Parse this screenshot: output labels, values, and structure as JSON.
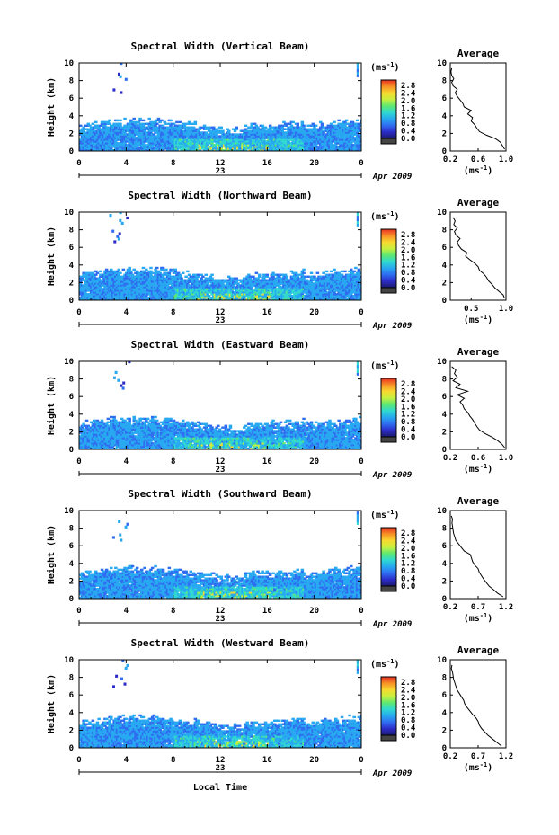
{
  "figure": {
    "common_x_label": "Local Time",
    "date_label": "Apr 2009",
    "day_label": "23",
    "colorbar_unit_text": "(ms",
    "colorbar_unit_sup": "-1",
    "colorbar_unit_close": ")",
    "avg_title": "Average",
    "avg_xlabel_text": "(ms",
    "avg_xlabel_sup": "-1",
    "avg_xlabel_close": ")"
  },
  "colorbar": {
    "ticks": [
      "0.0",
      "0.4",
      "0.8",
      "1.2",
      "1.6",
      "2.0",
      "2.4",
      "2.8"
    ],
    "values": [
      0.0,
      0.4,
      0.8,
      1.2,
      1.6,
      2.0,
      2.4,
      2.8
    ],
    "colors": [
      "#1a1a6e",
      "#2c2cc8",
      "#2f6ef0",
      "#28a8f0",
      "#30d8d0",
      "#5fe870",
      "#c8f040",
      "#f8d830",
      "#f89028",
      "#e83020"
    ]
  },
  "chart_data": [
    {
      "type": "heatmap",
      "title": "Spectral Width (Vertical Beam)",
      "xlabel": "Local Time",
      "ylabel": "Height (km)",
      "x_ticks": [
        "0",
        "4",
        "8",
        "12",
        "16",
        "20",
        "0"
      ],
      "y_ticks": [
        "0",
        "2",
        "4",
        "6",
        "8",
        "10"
      ],
      "xlim": [
        0,
        24
      ],
      "ylim": [
        0,
        10
      ],
      "colorbar_range": [
        0.0,
        2.8
      ],
      "average": {
        "xlim": [
          0.2,
          1.0
        ],
        "x_ticks": [
          "0.2",
          "0.6",
          "1.0"
        ],
        "y_ticks": [
          "0",
          "2",
          "4",
          "6",
          "8",
          "10"
        ],
        "height_km": [
          0.2,
          0.6,
          1.0,
          1.4,
          1.8,
          2.2,
          2.6,
          3.0,
          3.4,
          3.8,
          4.2,
          4.6,
          5.0,
          5.4,
          5.8,
          6.2,
          6.6,
          7.0,
          7.4,
          7.8,
          8.2,
          8.6,
          9.0,
          9.4
        ],
        "mean_width": [
          0.98,
          0.95,
          0.92,
          0.85,
          0.72,
          0.62,
          0.58,
          0.55,
          0.5,
          0.52,
          0.45,
          0.5,
          0.4,
          0.38,
          0.34,
          0.3,
          0.27,
          0.3,
          0.24,
          0.22,
          0.25,
          0.22,
          0.21,
          0.22
        ]
      }
    },
    {
      "type": "heatmap",
      "title": "Spectral Width (Northward Beam)",
      "xlabel": "Local Time",
      "ylabel": "Height (km)",
      "x_ticks": [
        "0",
        "4",
        "8",
        "12",
        "16",
        "20",
        "0"
      ],
      "y_ticks": [
        "0",
        "2",
        "4",
        "6",
        "8",
        "10"
      ],
      "xlim": [
        0,
        24
      ],
      "ylim": [
        0,
        10
      ],
      "colorbar_range": [
        0.0,
        2.8
      ],
      "average": {
        "xlim": [
          0.2,
          1.0
        ],
        "x_ticks": [
          "0.5",
          "1.0"
        ],
        "y_ticks": [
          "0",
          "2",
          "4",
          "6",
          "8",
          "10"
        ],
        "height_km": [
          0.2,
          0.6,
          1.0,
          1.4,
          1.8,
          2.2,
          2.6,
          3.0,
          3.4,
          3.8,
          4.2,
          4.6,
          5.0,
          5.4,
          5.8,
          6.2,
          6.6,
          7.0,
          7.4,
          7.8,
          8.2,
          8.6,
          9.0,
          9.4
        ],
        "mean_width": [
          0.98,
          0.96,
          0.9,
          0.84,
          0.8,
          0.75,
          0.72,
          0.68,
          0.62,
          0.6,
          0.55,
          0.48,
          0.42,
          0.44,
          0.36,
          0.32,
          0.3,
          0.34,
          0.28,
          0.26,
          0.3,
          0.25,
          0.27,
          0.24
        ]
      }
    },
    {
      "type": "heatmap",
      "title": "Spectral Width (Eastward Beam)",
      "xlabel": "Local Time",
      "ylabel": "Height (km)",
      "x_ticks": [
        "0",
        "4",
        "8",
        "12",
        "16",
        "20",
        "0"
      ],
      "y_ticks": [
        "0",
        "2",
        "4",
        "6",
        "8",
        "10"
      ],
      "xlim": [
        0,
        24
      ],
      "ylim": [
        0,
        10
      ],
      "colorbar_range": [
        0.0,
        2.8
      ],
      "average": {
        "xlim": [
          0.2,
          1.0
        ],
        "x_ticks": [
          "0.2",
          "0.6",
          "1.0"
        ],
        "y_ticks": [
          "0",
          "2",
          "4",
          "6",
          "8",
          "10"
        ],
        "height_km": [
          0.2,
          0.6,
          1.0,
          1.4,
          1.8,
          2.2,
          2.6,
          3.0,
          3.4,
          3.8,
          4.2,
          4.6,
          5.0,
          5.4,
          5.8,
          6.2,
          6.6,
          7.0,
          7.4,
          7.8,
          8.2,
          8.6,
          9.0,
          9.4
        ],
        "mean_width": [
          0.98,
          0.94,
          0.88,
          0.8,
          0.7,
          0.62,
          0.58,
          0.55,
          0.52,
          0.48,
          0.45,
          0.4,
          0.38,
          0.34,
          0.4,
          0.3,
          0.45,
          0.28,
          0.34,
          0.24,
          0.3,
          0.26,
          0.28,
          0.22
        ]
      }
    },
    {
      "type": "heatmap",
      "title": "Spectral Width (Southward Beam)",
      "xlabel": "Local Time",
      "ylabel": "Height (km)",
      "x_ticks": [
        "0",
        "4",
        "8",
        "12",
        "16",
        "20",
        "0"
      ],
      "y_ticks": [
        "0",
        "2",
        "4",
        "6",
        "8",
        "10"
      ],
      "xlim": [
        0,
        24
      ],
      "ylim": [
        0,
        10
      ],
      "colorbar_range": [
        0.0,
        2.8
      ],
      "average": {
        "xlim": [
          0.2,
          1.2
        ],
        "x_ticks": [
          "0.2",
          "0.7",
          "1.2"
        ],
        "y_ticks": [
          "0",
          "2",
          "4",
          "6",
          "8",
          "10"
        ],
        "height_km": [
          0.2,
          0.6,
          1.0,
          1.4,
          1.8,
          2.2,
          2.6,
          3.0,
          3.4,
          3.8,
          4.2,
          4.6,
          5.0,
          5.4,
          5.8,
          6.2,
          6.6,
          7.0,
          7.4,
          7.8,
          8.2,
          8.6,
          9.0,
          9.4
        ],
        "mean_width": [
          1.15,
          1.05,
          0.98,
          0.9,
          0.85,
          0.8,
          0.76,
          0.72,
          0.7,
          0.64,
          0.6,
          0.58,
          0.56,
          0.45,
          0.4,
          0.35,
          0.3,
          0.28,
          0.26,
          0.25,
          0.24,
          0.23,
          0.24,
          0.22
        ]
      }
    },
    {
      "type": "heatmap",
      "title": "Spectral Width (Westward Beam)",
      "xlabel": "Local Time",
      "ylabel": "Height (km)",
      "x_ticks": [
        "0",
        "4",
        "8",
        "12",
        "16",
        "20",
        "0"
      ],
      "y_ticks": [
        "0",
        "2",
        "4",
        "6",
        "8",
        "10"
      ],
      "xlim": [
        0,
        24
      ],
      "ylim": [
        0,
        10
      ],
      "colorbar_range": [
        0.0,
        2.8
      ],
      "average": {
        "xlim": [
          0.2,
          1.2
        ],
        "x_ticks": [
          "0.2",
          "0.7",
          "1.2"
        ],
        "y_ticks": [
          "0",
          "2",
          "4",
          "6",
          "8",
          "10"
        ],
        "height_km": [
          0.2,
          0.6,
          1.0,
          1.4,
          1.8,
          2.2,
          2.6,
          3.0,
          3.4,
          3.8,
          4.2,
          4.6,
          5.0,
          5.4,
          5.8,
          6.2,
          6.6,
          7.0,
          7.4,
          7.8,
          8.2,
          8.6,
          9.0,
          9.4
        ],
        "mean_width": [
          1.12,
          1.04,
          0.96,
          0.88,
          0.82,
          0.76,
          0.72,
          0.7,
          0.66,
          0.6,
          0.55,
          0.5,
          0.46,
          0.44,
          0.4,
          0.36,
          0.32,
          0.3,
          0.28,
          0.26,
          0.25,
          0.24,
          0.22,
          0.23
        ]
      }
    }
  ]
}
